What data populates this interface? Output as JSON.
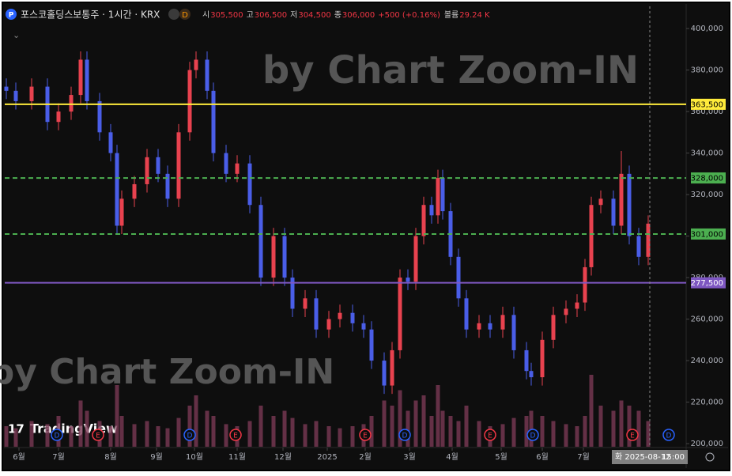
{
  "chart_data": {
    "type": "candlestick",
    "header": {
      "symbol": "포스코홀딩스보통주 · 1시간 · KRX",
      "badge": "D",
      "items": [
        {
          "key": "시",
          "value": "305,500"
        },
        {
          "key": "고",
          "value": "306,500"
        },
        {
          "key": "저",
          "value": "304,500"
        },
        {
          "key": "종",
          "value": "306,000"
        }
      ],
      "change": "+500 (+0.16%)",
      "volume_key": "볼륨",
      "volume_value": "29.24 K"
    },
    "watermarks": [
      "by Chart Zoom-IN",
      "by Chart Zoom-IN"
    ],
    "logo": "TradingView",
    "up_color": "#e8424f",
    "down_color": "#4a5ee8",
    "volume_color": "#7a3a55",
    "xlim": [
      0,
      431
    ],
    "xticks": [
      {
        "value": 9,
        "label": "6월"
      },
      {
        "value": 34,
        "label": "7월"
      },
      {
        "value": 67,
        "label": "8월"
      },
      {
        "value": 96,
        "label": "9월"
      },
      {
        "value": 120,
        "label": "10월"
      },
      {
        "value": 147,
        "label": "11월"
      },
      {
        "value": 176,
        "label": "12월"
      },
      {
        "value": 204,
        "label": "2025"
      },
      {
        "value": 228,
        "label": "2월"
      },
      {
        "value": 256,
        "label": "3월"
      },
      {
        "value": 283,
        "label": "4월"
      },
      {
        "value": 314,
        "label": "5월"
      },
      {
        "value": 340,
        "label": "6월"
      },
      {
        "value": 366,
        "label": "7월"
      }
    ],
    "ylim": [
      198500,
      410700
    ],
    "yticks": [
      {
        "value": 200000,
        "label": "200,000"
      },
      {
        "value": 220000,
        "label": "220,000"
      },
      {
        "value": 240000,
        "label": "240,000"
      },
      {
        "value": 260000,
        "label": "260,000"
      },
      {
        "value": 280000,
        "label": "280,000"
      },
      {
        "value": 300000,
        "label": "300,000"
      },
      {
        "value": 320000,
        "label": "320,000"
      },
      {
        "value": 340000,
        "label": "340,000"
      },
      {
        "value": 360000,
        "label": "360,000"
      },
      {
        "value": 380000,
        "label": "380,000"
      },
      {
        "value": 400000,
        "label": "400,000"
      }
    ],
    "levels": [
      {
        "value": 363500,
        "label": "363,500",
        "color": "#ffeb3b",
        "dashed": false,
        "text_color": "#000000"
      },
      {
        "value": 328000,
        "label": "328,000",
        "color": "#4caf50",
        "dashed": true,
        "text_color": "#000000"
      },
      {
        "value": 301000,
        "label": "301,000",
        "color": "#4caf50",
        "dashed": true,
        "text_color": "#000000"
      },
      {
        "value": 277500,
        "label": "277,500",
        "color": "#7e57c2",
        "dashed": false,
        "text_color": "#ffffff"
      }
    ],
    "crosshair": {
      "x": 408,
      "label": "화 2025-08-12",
      "time": "15:00"
    },
    "events": [
      {
        "x": 33,
        "label": "D"
      },
      {
        "x": 59,
        "label": "E"
      },
      {
        "x": 117,
        "label": "D"
      },
      {
        "x": 146,
        "label": "E"
      },
      {
        "x": 228,
        "label": "E"
      },
      {
        "x": 253,
        "label": "D"
      },
      {
        "x": 307,
        "label": "E"
      },
      {
        "x": 334,
        "label": "D"
      },
      {
        "x": 397,
        "label": "E"
      },
      {
        "x": 420,
        "label": "D"
      }
    ],
    "volume_lim": [
      0,
      100
    ],
    "candles": {
      "x": [
        1,
        7,
        17,
        27,
        34,
        42,
        48,
        52,
        60,
        67,
        71,
        74,
        82,
        90,
        97,
        103,
        110,
        117,
        121,
        128,
        132,
        140,
        147,
        155,
        162,
        170,
        177,
        182,
        190,
        197,
        205,
        212,
        220,
        227,
        232,
        240,
        245,
        250,
        255,
        260,
        265,
        270,
        274,
        277,
        282,
        287,
        292,
        300,
        307,
        315,
        322,
        330,
        333,
        340,
        347,
        355,
        362,
        367,
        371,
        377,
        385,
        390,
        395,
        401,
        407
      ],
      "open": [
        372000,
        370000,
        365000,
        372000,
        355000,
        360000,
        368000,
        385000,
        365000,
        350000,
        340000,
        305000,
        318000,
        325000,
        338000,
        330000,
        318000,
        350000,
        380000,
        385000,
        370000,
        340000,
        330000,
        335000,
        315000,
        280000,
        300000,
        280000,
        265000,
        270000,
        255000,
        260000,
        263000,
        258000,
        255000,
        240000,
        228000,
        245000,
        280000,
        278000,
        300000,
        315000,
        310000,
        328000,
        312000,
        290000,
        270000,
        255000,
        258000,
        255000,
        262000,
        245000,
        235000,
        232000,
        250000,
        262000,
        265000,
        268000,
        285000,
        315000,
        318000,
        305000,
        330000,
        300000,
        290000
      ],
      "high": [
        376000,
        374000,
        376000,
        376000,
        364000,
        372000,
        389000,
        389000,
        369000,
        354000,
        344000,
        322000,
        329000,
        342000,
        342000,
        334000,
        354000,
        384000,
        389000,
        389000,
        374000,
        344000,
        339000,
        339000,
        319000,
        304000,
        304000,
        284000,
        274000,
        274000,
        264000,
        267000,
        267000,
        262000,
        259000,
        244000,
        249000,
        284000,
        284000,
        304000,
        319000,
        319000,
        332000,
        332000,
        316000,
        294000,
        274000,
        262000,
        262000,
        266000,
        266000,
        249000,
        239000,
        254000,
        266000,
        269000,
        272000,
        289000,
        319000,
        322000,
        322000,
        341000,
        334000,
        304000,
        310000
      ],
      "low": [
        366000,
        361000,
        361000,
        351000,
        351000,
        356000,
        364000,
        361000,
        346000,
        336000,
        301000,
        301000,
        314000,
        321000,
        326000,
        314000,
        314000,
        346000,
        376000,
        366000,
        336000,
        326000,
        326000,
        311000,
        276000,
        276000,
        276000,
        261000,
        261000,
        251000,
        251000,
        256000,
        254000,
        251000,
        236000,
        224000,
        224000,
        241000,
        274000,
        274000,
        296000,
        306000,
        306000,
        308000,
        286000,
        266000,
        251000,
        251000,
        251000,
        251000,
        241000,
        231000,
        228000,
        228000,
        246000,
        258000,
        261000,
        264000,
        281000,
        311000,
        301000,
        301000,
        296000,
        286000,
        286000
      ],
      "close": [
        370000,
        365000,
        372000,
        355000,
        360000,
        368000,
        385000,
        365000,
        350000,
        340000,
        305000,
        318000,
        325000,
        338000,
        330000,
        318000,
        350000,
        380000,
        385000,
        370000,
        340000,
        330000,
        335000,
        315000,
        280000,
        300000,
        280000,
        265000,
        270000,
        255000,
        260000,
        263000,
        258000,
        255000,
        240000,
        228000,
        245000,
        280000,
        278000,
        300000,
        315000,
        310000,
        328000,
        312000,
        290000,
        270000,
        255000,
        258000,
        255000,
        262000,
        245000,
        235000,
        232000,
        250000,
        262000,
        265000,
        268000,
        285000,
        315000,
        318000,
        305000,
        330000,
        300000,
        290000,
        306000
      ],
      "volume": [
        20,
        18,
        25,
        22,
        30,
        20,
        45,
        35,
        25,
        20,
        60,
        30,
        22,
        25,
        20,
        18,
        28,
        40,
        50,
        35,
        30,
        22,
        20,
        25,
        40,
        30,
        35,
        28,
        22,
        25,
        20,
        18,
        20,
        22,
        30,
        45,
        40,
        55,
        35,
        45,
        50,
        30,
        60,
        35,
        30,
        25,
        40,
        25,
        20,
        22,
        28,
        30,
        35,
        30,
        25,
        22,
        20,
        30,
        70,
        40,
        35,
        45,
        40,
        35,
        25
      ]
    }
  }
}
